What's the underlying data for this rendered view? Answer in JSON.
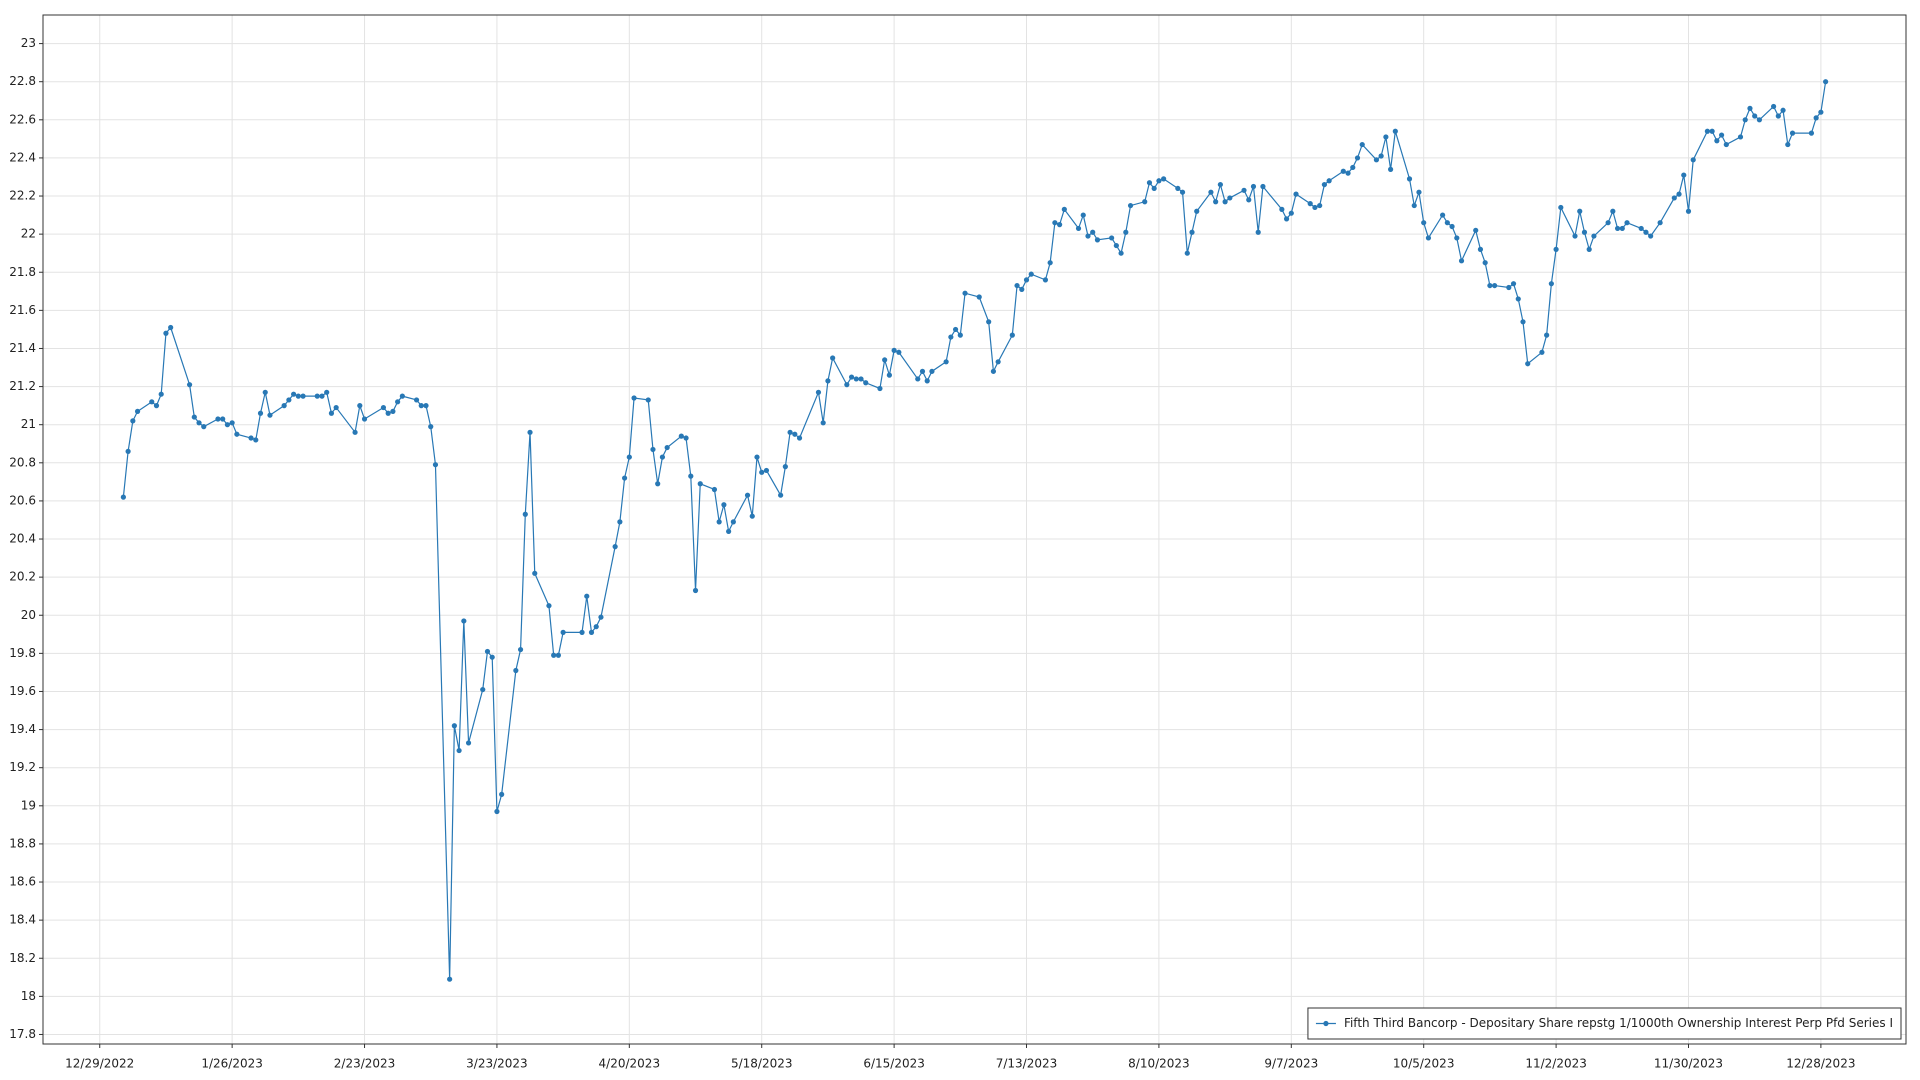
{
  "chart_data": {
    "type": "line",
    "x": [
      "2023-01-03",
      "2023-01-04",
      "2023-01-05",
      "2023-01-06",
      "2023-01-09",
      "2023-01-10",
      "2023-01-11",
      "2023-01-12",
      "2023-01-13",
      "2023-01-17",
      "2023-01-18",
      "2023-01-19",
      "2023-01-20",
      "2023-01-23",
      "2023-01-24",
      "2023-01-25",
      "2023-01-26",
      "2023-01-27",
      "2023-01-30",
      "2023-01-31",
      "2023-02-01",
      "2023-02-02",
      "2023-02-03",
      "2023-02-06",
      "2023-02-07",
      "2023-02-08",
      "2023-02-09",
      "2023-02-10",
      "2023-02-13",
      "2023-02-14",
      "2023-02-15",
      "2023-02-16",
      "2023-02-17",
      "2023-02-21",
      "2023-02-22",
      "2023-02-23",
      "2023-02-27",
      "2023-02-28",
      "2023-03-01",
      "2023-03-02",
      "2023-03-03",
      "2023-03-06",
      "2023-03-07",
      "2023-03-08",
      "2023-03-09",
      "2023-03-10",
      "2023-03-13",
      "2023-03-14",
      "2023-03-15",
      "2023-03-16",
      "2023-03-17",
      "2023-03-20",
      "2023-03-21",
      "2023-03-22",
      "2023-03-23",
      "2023-03-24",
      "2023-03-27",
      "2023-03-28",
      "2023-03-29",
      "2023-03-30",
      "2023-03-31",
      "2023-04-03",
      "2023-04-04",
      "2023-04-05",
      "2023-04-06",
      "2023-04-10",
      "2023-04-11",
      "2023-04-12",
      "2023-04-13",
      "2023-04-14",
      "2023-04-17",
      "2023-04-18",
      "2023-04-19",
      "2023-04-20",
      "2023-04-21",
      "2023-04-24",
      "2023-04-25",
      "2023-04-26",
      "2023-04-27",
      "2023-04-28",
      "2023-05-01",
      "2023-05-02",
      "2023-05-03",
      "2023-05-04",
      "2023-05-05",
      "2023-05-08",
      "2023-05-09",
      "2023-05-10",
      "2023-05-11",
      "2023-05-12",
      "2023-05-15",
      "2023-05-16",
      "2023-05-17",
      "2023-05-18",
      "2023-05-19",
      "2023-05-22",
      "2023-05-23",
      "2023-05-24",
      "2023-05-25",
      "2023-05-26",
      "2023-05-30",
      "2023-05-31",
      "2023-06-01",
      "2023-06-02",
      "2023-06-05",
      "2023-06-06",
      "2023-06-07",
      "2023-06-08",
      "2023-06-09",
      "2023-06-12",
      "2023-06-13",
      "2023-06-14",
      "2023-06-15",
      "2023-06-16",
      "2023-06-20",
      "2023-06-21",
      "2023-06-22",
      "2023-06-23",
      "2023-06-26",
      "2023-06-27",
      "2023-06-28",
      "2023-06-29",
      "2023-06-30",
      "2023-07-03",
      "2023-07-05",
      "2023-07-06",
      "2023-07-07",
      "2023-07-10",
      "2023-07-11",
      "2023-07-12",
      "2023-07-13",
      "2023-07-14",
      "2023-07-17",
      "2023-07-18",
      "2023-07-19",
      "2023-07-20",
      "2023-07-21",
      "2023-07-24",
      "2023-07-25",
      "2023-07-26",
      "2023-07-27",
      "2023-07-28",
      "2023-07-31",
      "2023-08-01",
      "2023-08-02",
      "2023-08-03",
      "2023-08-04",
      "2023-08-07",
      "2023-08-08",
      "2023-08-09",
      "2023-08-10",
      "2023-08-11",
      "2023-08-14",
      "2023-08-15",
      "2023-08-16",
      "2023-08-17",
      "2023-08-18",
      "2023-08-21",
      "2023-08-22",
      "2023-08-23",
      "2023-08-24",
      "2023-08-25",
      "2023-08-28",
      "2023-08-29",
      "2023-08-30",
      "2023-08-31",
      "2023-09-01",
      "2023-09-05",
      "2023-09-06",
      "2023-09-07",
      "2023-09-08",
      "2023-09-11",
      "2023-09-12",
      "2023-09-13",
      "2023-09-14",
      "2023-09-15",
      "2023-09-18",
      "2023-09-19",
      "2023-09-20",
      "2023-09-21",
      "2023-09-22",
      "2023-09-25",
      "2023-09-26",
      "2023-09-27",
      "2023-09-28",
      "2023-09-29",
      "2023-10-02",
      "2023-10-03",
      "2023-10-04",
      "2023-10-05",
      "2023-10-06",
      "2023-10-09",
      "2023-10-10",
      "2023-10-11",
      "2023-10-12",
      "2023-10-13",
      "2023-10-16",
      "2023-10-17",
      "2023-10-18",
      "2023-10-19",
      "2023-10-20",
      "2023-10-23",
      "2023-10-24",
      "2023-10-25",
      "2023-10-26",
      "2023-10-27",
      "2023-10-30",
      "2023-10-31",
      "2023-11-01",
      "2023-11-02",
      "2023-11-03",
      "2023-11-06",
      "2023-11-07",
      "2023-11-08",
      "2023-11-09",
      "2023-11-10",
      "2023-11-13",
      "2023-11-14",
      "2023-11-15",
      "2023-11-16",
      "2023-11-17",
      "2023-11-20",
      "2023-11-21",
      "2023-11-22",
      "2023-11-24",
      "2023-11-27",
      "2023-11-28",
      "2023-11-29",
      "2023-11-30",
      "2023-12-01",
      "2023-12-04",
      "2023-12-05",
      "2023-12-06",
      "2023-12-07",
      "2023-12-08",
      "2023-12-11",
      "2023-12-12",
      "2023-12-13",
      "2023-12-14",
      "2023-12-15",
      "2023-12-18",
      "2023-12-19",
      "2023-12-20",
      "2023-12-21",
      "2023-12-22",
      "2023-12-26",
      "2023-12-27",
      "2023-12-28",
      "2023-12-29"
    ],
    "series": [
      {
        "name": "Fifth Third Bancorp - Depositary Share repstg 1/1000th Ownership Interest Perp Pfd Series I",
        "color": "#2878b5",
        "values": [
          20.62,
          20.86,
          21.02,
          21.07,
          21.12,
          21.1,
          21.16,
          21.48,
          21.51,
          21.21,
          21.04,
          21.01,
          20.99,
          21.03,
          21.03,
          21.0,
          21.01,
          20.95,
          20.93,
          20.92,
          21.06,
          21.17,
          21.05,
          21.1,
          21.13,
          21.16,
          21.15,
          21.15,
          21.15,
          21.15,
          21.17,
          21.06,
          21.09,
          20.96,
          21.1,
          21.03,
          21.09,
          21.06,
          21.07,
          21.12,
          21.15,
          21.13,
          21.1,
          21.1,
          20.99,
          20.79,
          18.09,
          19.42,
          19.29,
          19.97,
          19.33,
          19.61,
          19.81,
          19.78,
          18.97,
          19.06,
          19.71,
          19.82,
          20.53,
          20.96,
          20.22,
          20.05,
          19.79,
          19.79,
          19.91,
          19.91,
          20.1,
          19.91,
          19.94,
          19.99,
          20.36,
          20.49,
          20.72,
          20.83,
          21.14,
          21.13,
          20.87,
          20.69,
          20.83,
          20.88,
          20.94,
          20.93,
          20.73,
          20.13,
          20.69,
          20.66,
          20.49,
          20.58,
          20.44,
          20.49,
          20.63,
          20.52,
          20.83,
          20.75,
          20.76,
          20.63,
          20.78,
          20.96,
          20.95,
          20.93,
          21.17,
          21.01,
          21.23,
          21.35,
          21.21,
          21.25,
          21.24,
          21.24,
          21.22,
          21.19,
          21.34,
          21.26,
          21.39,
          21.38,
          21.24,
          21.28,
          21.23,
          21.28,
          21.33,
          21.46,
          21.5,
          21.47,
          21.69,
          21.67,
          21.54,
          21.28,
          21.33,
          21.47,
          21.73,
          21.71,
          21.76,
          21.79,
          21.76,
          21.85,
          22.06,
          22.05,
          22.13,
          22.03,
          22.1,
          21.99,
          22.01,
          21.97,
          21.98,
          21.94,
          21.9,
          22.01,
          22.15,
          22.17,
          22.27,
          22.24,
          22.28,
          22.29,
          22.24,
          22.22,
          21.9,
          22.01,
          22.12,
          22.22,
          22.17,
          22.26,
          22.17,
          22.19,
          22.23,
          22.18,
          22.25,
          22.01,
          22.25,
          22.13,
          22.08,
          22.11,
          22.21,
          22.16,
          22.14,
          22.15,
          22.26,
          22.28,
          22.33,
          22.32,
          22.35,
          22.4,
          22.47,
          22.39,
          22.41,
          22.51,
          22.34,
          22.54,
          22.29,
          22.15,
          22.22,
          22.06,
          21.98,
          22.1,
          22.06,
          22.04,
          21.98,
          21.86,
          22.02,
          21.92,
          21.85,
          21.73,
          21.73,
          21.72,
          21.74,
          21.66,
          21.54,
          21.32,
          21.38,
          21.47,
          21.74,
          21.92,
          22.14,
          21.99,
          22.12,
          22.01,
          21.92,
          21.99,
          22.06,
          22.12,
          22.03,
          22.03,
          22.06,
          22.03,
          22.01,
          21.99,
          22.06,
          22.19,
          22.21,
          22.31,
          22.12,
          22.39,
          22.54,
          22.54,
          22.49,
          22.52,
          22.47,
          22.51,
          22.6,
          22.66,
          22.62,
          22.6,
          22.67,
          22.62,
          22.65,
          22.47,
          22.53,
          22.53,
          22.61,
          22.64,
          22.8
        ]
      }
    ],
    "xlim": [
      "2022-12-17",
      "2024-01-15"
    ],
    "xticks": [
      {
        "value": "2022-12-29",
        "label": "12/29/2022"
      },
      {
        "value": "2023-01-26",
        "label": "1/26/2023"
      },
      {
        "value": "2023-02-23",
        "label": "2/23/2023"
      },
      {
        "value": "2023-03-23",
        "label": "3/23/2023"
      },
      {
        "value": "2023-04-20",
        "label": "4/20/2023"
      },
      {
        "value": "2023-05-18",
        "label": "5/18/2023"
      },
      {
        "value": "2023-06-15",
        "label": "6/15/2023"
      },
      {
        "value": "2023-07-13",
        "label": "7/13/2023"
      },
      {
        "value": "2023-08-10",
        "label": "8/10/2023"
      },
      {
        "value": "2023-09-07",
        "label": "9/7/2023"
      },
      {
        "value": "2023-10-05",
        "label": "10/5/2023"
      },
      {
        "value": "2023-11-02",
        "label": "11/2/2023"
      },
      {
        "value": "2023-11-30",
        "label": "11/30/2023"
      },
      {
        "value": "2023-12-28",
        "label": "12/28/2023"
      }
    ],
    "ylim": [
      17.75,
      23.15
    ],
    "yticks": [
      17.8,
      18,
      18.2,
      18.4,
      18.6,
      18.8,
      19,
      19.2,
      19.4,
      19.6,
      19.8,
      20,
      20.2,
      20.4,
      20.6,
      20.8,
      21,
      21.2,
      21.4,
      21.6,
      21.8,
      22,
      22.2,
      22.4,
      22.6,
      22.8,
      23
    ],
    "grid": true,
    "legend": "bottom-right"
  }
}
